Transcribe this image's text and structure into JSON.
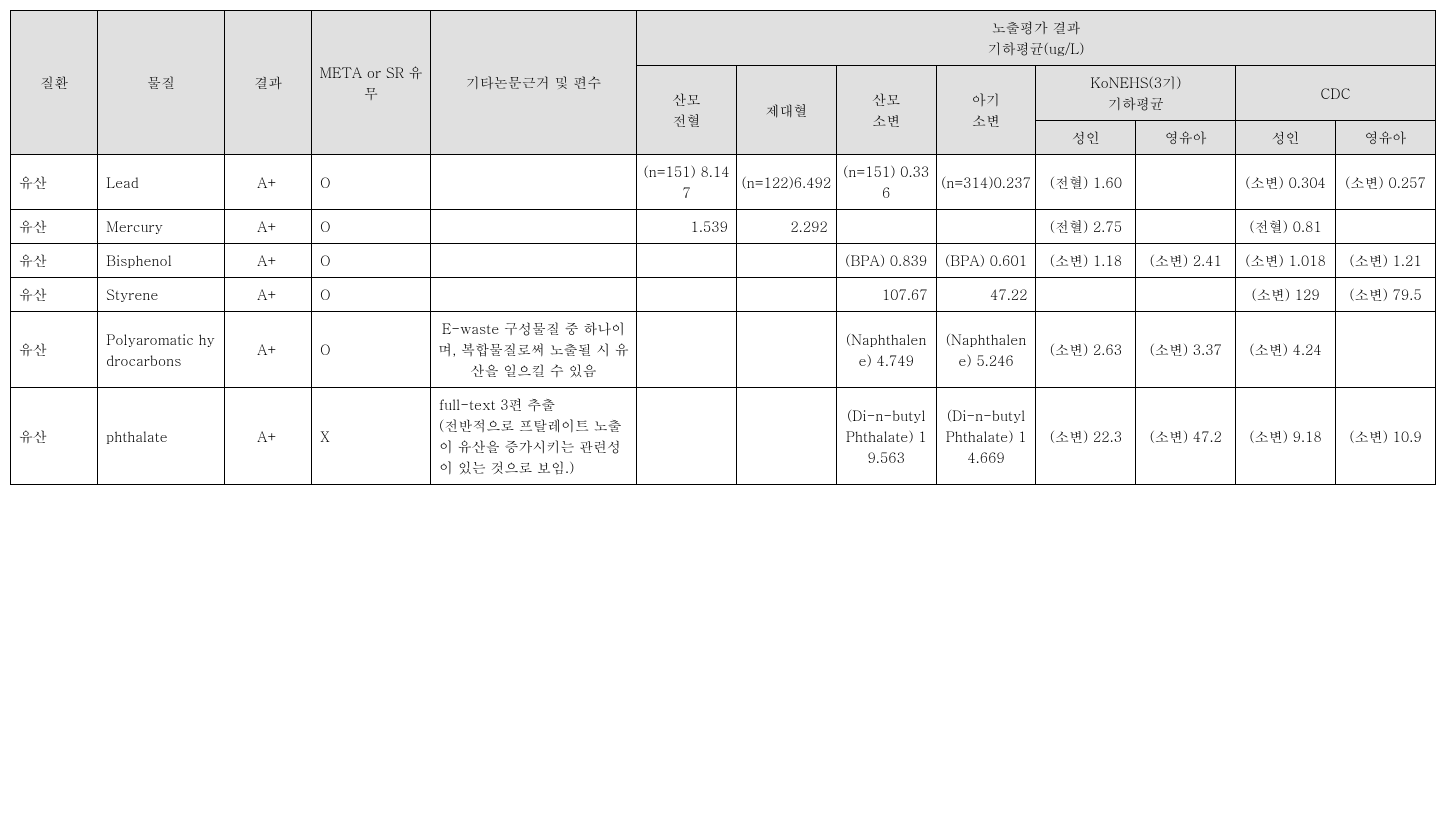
{
  "headers": {
    "disease": "질환",
    "substance": "물질",
    "result": "결과",
    "meta": "META or SR 유무",
    "evidence": "기타논문근거 및 편수",
    "exposure_title": "노출평가 결과\n기하평균(ug/L)",
    "mom_blood": "산모\n전혈",
    "cord_blood": "제대혈",
    "mom_urine": "산모\n소변",
    "baby_urine": "아기\n소변",
    "konehs": "KoNEHS(3기)\n기하평균",
    "cdc": "CDC",
    "adult": "성인",
    "infant": "영유아"
  },
  "rows": [
    {
      "disease": "유산",
      "substance": "Lead",
      "result": "A+",
      "meta": "O",
      "evidence": "",
      "mom_blood": "(n=151) 8.147",
      "cord_blood": "(n=122)6.492",
      "mom_urine": "(n=151) 0.336",
      "baby_urine": "(n=314)0.237",
      "konehs_adult": "(전혈) 1.60",
      "konehs_infant": "",
      "cdc_adult": "(소변) 0.304",
      "cdc_infant": "(소변) 0.257"
    },
    {
      "disease": "유산",
      "substance": "Mercury",
      "result": "A+",
      "meta": "O",
      "evidence": "",
      "mom_blood": "1.539",
      "cord_blood": "2.292",
      "mom_urine": "",
      "baby_urine": "",
      "konehs_adult": "(전혈) 2.75",
      "konehs_infant": "",
      "cdc_adult": "(전혈) 0.81",
      "cdc_infant": ""
    },
    {
      "disease": "유산",
      "substance": "Bisphenol",
      "result": "A+",
      "meta": "O",
      "evidence": "",
      "mom_blood": "",
      "cord_blood": "",
      "mom_urine": "(BPA) 0.839",
      "baby_urine": "(BPA) 0.601",
      "konehs_adult": "(소변) 1.18",
      "konehs_infant": "(소변) 2.41",
      "cdc_adult": "(소변) 1.018",
      "cdc_infant": "(소변) 1.21"
    },
    {
      "disease": "유산",
      "substance": "Styrene",
      "result": "A+",
      "meta": "O",
      "evidence": "",
      "mom_blood": "",
      "cord_blood": "",
      "mom_urine": "107.67",
      "baby_urine": "47.22",
      "konehs_adult": "",
      "konehs_infant": "",
      "cdc_adult": "(소변) 129",
      "cdc_infant": "(소변) 79.5"
    },
    {
      "disease": "유산",
      "substance": "Polyaromatic hydrocarbons",
      "result": "A+",
      "meta": "O",
      "evidence": "E-waste 구성물질 중 하나이며, 복합물질로써 노출될 시 유산을 일으킬 수 있음",
      "mom_blood": "",
      "cord_blood": "",
      "mom_urine": "(Naphthalene) 4.749",
      "baby_urine": "(Naphthalene) 5.246",
      "konehs_adult": "(소변) 2.63",
      "konehs_infant": "(소변) 3.37",
      "cdc_adult": "(소변) 4.24",
      "cdc_infant": ""
    },
    {
      "disease": "유산",
      "substance": "phthalate",
      "result": "A+",
      "meta": "X",
      "evidence": "full-text 3편 추출\n(전반적으로 프탈레이트 노출이 유산을 증가시키는 관련성이 있는 것으로 보임.)",
      "mom_blood": "",
      "cord_blood": "",
      "mom_urine": "(Di-n-butyl Phthalate) 19.563",
      "baby_urine": "(Di-n-butyl Phthalate) 14.669",
      "konehs_adult": "(소변) 22.3",
      "konehs_infant": "(소변) 47.2",
      "cdc_adult": "(소변) 9.18",
      "cdc_infant": "(소변) 10.9"
    }
  ]
}
